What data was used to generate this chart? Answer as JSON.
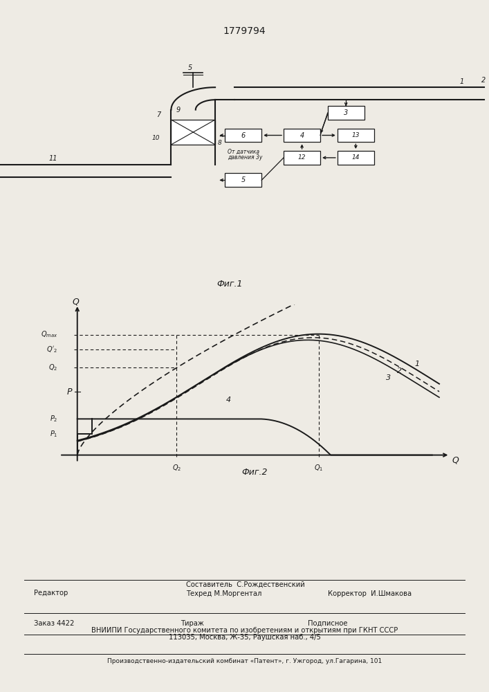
{
  "patent_number": "1779794",
  "background_color": "#eeebe4",
  "line_color": "#1a1a1a",
  "fig1_caption": "Фиг.1",
  "fig2_caption": "Фиг.2",
  "footer": {
    "editor_label": "Редактор",
    "composer_label": "Составитель  С.Рождественский",
    "techred_label": "Техред М.Моргентал",
    "corrector_label": "Корректор  И.Шмакова",
    "order_label": "Заказ 4422",
    "tirazh_label": "Тираж",
    "podpisnoe_label": "Подписное",
    "vnipi_line": "ВНИИПИ Государственного комитета по изобретениям и открытиям при ГКНТ СССР",
    "address_line": "113035, Москва, Ж-35, Раушская наб., 4/5",
    "production_line": "Производственно-издательский комбинат «Патент», г. Ужгород, ул.Гагарина, 101"
  }
}
